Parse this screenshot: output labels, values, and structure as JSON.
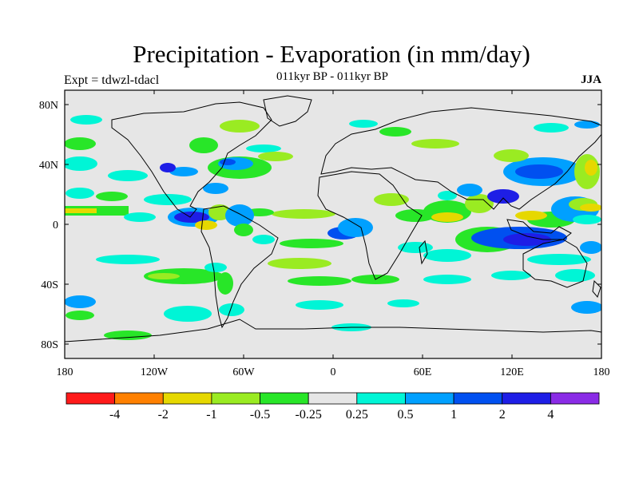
{
  "header": {
    "title": "Precipitation - Evaporation (in mm/day)",
    "left_label": "Expt = tdwzl-tdacl",
    "center_label": "011kyr BP - 011kyr BP",
    "right_label": "JJA"
  },
  "map": {
    "background_color": "#e6e6e6",
    "lat_ticks": [
      "80N",
      "40N",
      "0",
      "40S",
      "80S"
    ],
    "lon_ticks": [
      "180",
      "120W",
      "60W",
      "0",
      "60E",
      "120E",
      "180"
    ]
  },
  "colorbar": {
    "colors": [
      "#ff1a1a",
      "#ff8000",
      "#e6d800",
      "#9aeb22",
      "#28e628",
      "#e6e6e6",
      "#00f5d6",
      "#00a0ff",
      "#0050f0",
      "#1e1ee6",
      "#8a2be6"
    ],
    "labels": [
      "-4",
      "-2",
      "-1",
      "-0.5",
      "-0.25",
      "0.25",
      "0.5",
      "1",
      "2",
      "4"
    ]
  }
}
